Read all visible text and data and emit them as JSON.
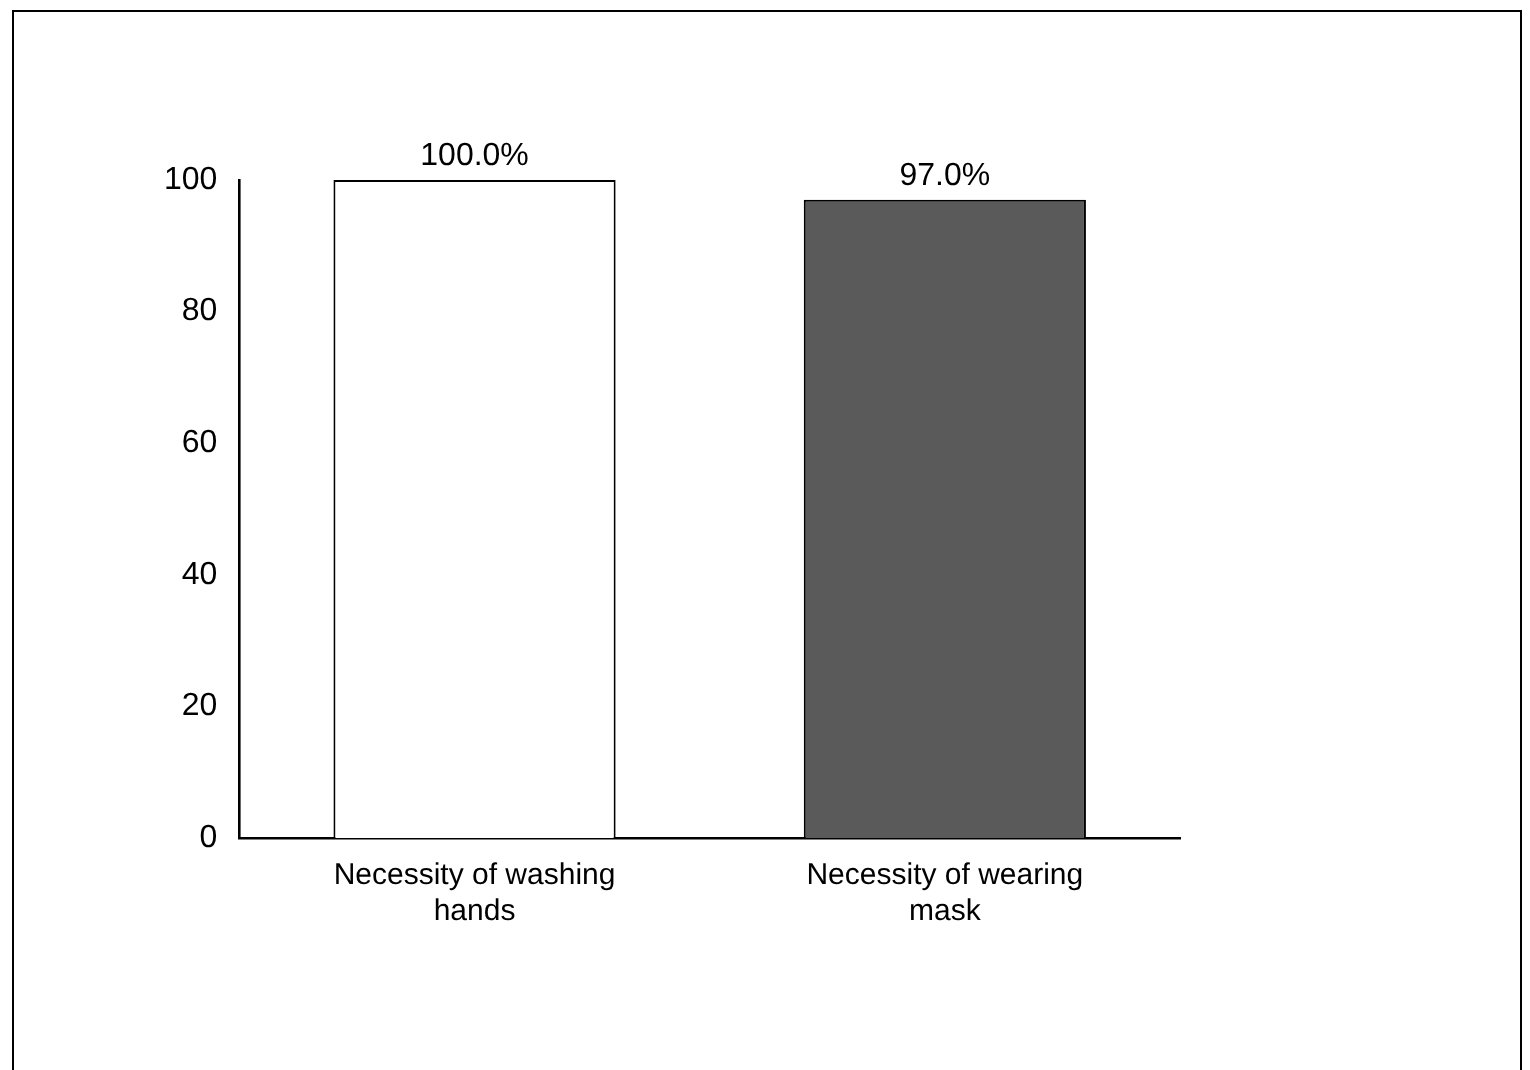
{
  "chart_data": {
    "type": "bar",
    "categories": [
      "Necessity of washing hands",
      "Necessity of wearing mask"
    ],
    "values": [
      100,
      97
    ],
    "colors": [
      "#ffffff",
      "#5a5a5a"
    ],
    "value_labels": [
      "100.0%",
      "97.0%"
    ],
    "ylim": [
      0,
      100
    ],
    "yticks": [
      0,
      20,
      40,
      60,
      80,
      100
    ],
    "grid": false,
    "legend": false
  }
}
